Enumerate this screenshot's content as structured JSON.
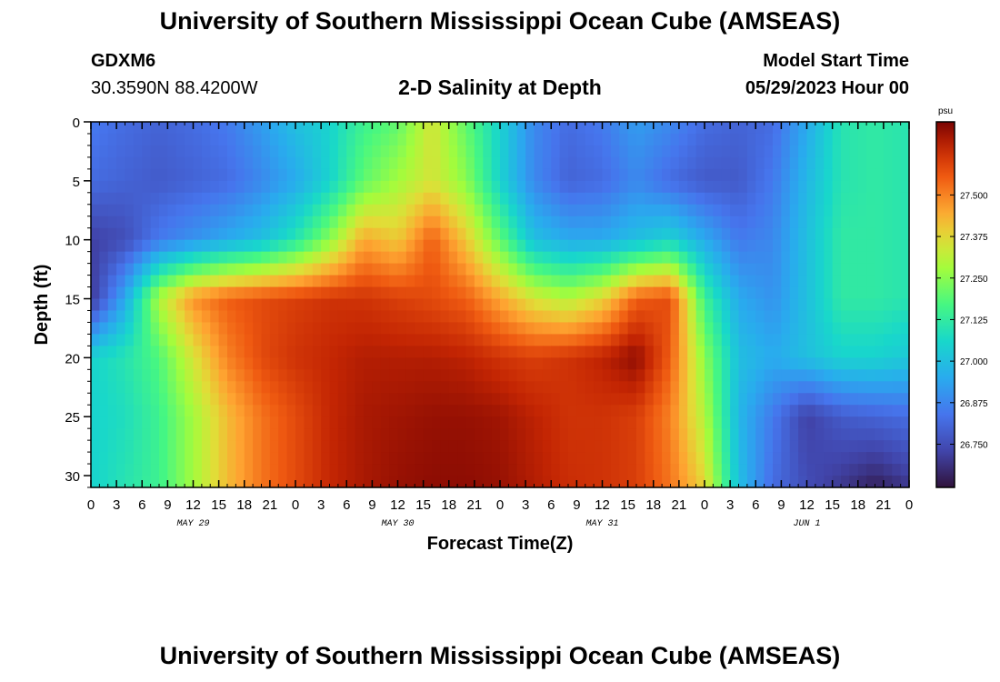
{
  "header": {
    "title": "University of Southern Mississippi Ocean Cube (AMSEAS)",
    "station_id": "GDXM6",
    "coords": "30.3590N  88.4200W",
    "chart_title": "2-D Salinity at Depth",
    "model_start_label": "Model Start Time",
    "model_start_value": "05/29/2023 Hour 00"
  },
  "footer": {
    "title": "University of Southern Mississippi Ocean Cube (AMSEAS)"
  },
  "chart_data": {
    "type": "heatmap",
    "title": "2-D Salinity at Depth",
    "xlabel": "Forecast Time(Z)",
    "ylabel": "Depth (ft)",
    "x_range_hours": [
      0,
      96
    ],
    "x_tick_labels": [
      "0",
      "3",
      "6",
      "9",
      "12",
      "15",
      "18",
      "21",
      "0",
      "3",
      "6",
      "9",
      "12",
      "15",
      "18",
      "21",
      "0",
      "3",
      "6",
      "9",
      "12",
      "15",
      "18",
      "21",
      "0",
      "3",
      "6",
      "9",
      "12",
      "15",
      "18",
      "21",
      "0"
    ],
    "date_labels": [
      {
        "label": "MAY 29",
        "hour": 12
      },
      {
        "label": "MAY 30",
        "hour": 36
      },
      {
        "label": "MAY 31",
        "hour": 60
      },
      {
        "label": "JUN 1",
        "hour": 84
      }
    ],
    "ylim": [
      0,
      31
    ],
    "y_ticks": [
      0,
      5,
      10,
      15,
      20,
      25,
      30
    ],
    "colorbar": {
      "units": "psu",
      "vmin": 26.62,
      "vmax": 27.72,
      "ticks": [
        27.5,
        27.375,
        27.25,
        27.125,
        27.0,
        26.875,
        26.75
      ],
      "tick_labels": [
        "27.500",
        "27.375",
        "27.250",
        "27.125",
        "27.000",
        "26.875",
        "26.750"
      ]
    },
    "field": {
      "hours": [
        0,
        4,
        8,
        12,
        16,
        20,
        24,
        28,
        32,
        36,
        40,
        44,
        48,
        52,
        56,
        60,
        64,
        68,
        72,
        76,
        80,
        84,
        88,
        92,
        96
      ],
      "depths": [
        0,
        5,
        10,
        15,
        20,
        25,
        31
      ],
      "values": [
        [
          26.85,
          26.82,
          26.8,
          26.82,
          26.85,
          26.92,
          27.0,
          27.05,
          27.15,
          27.2,
          27.35,
          27.2,
          27.05,
          26.88,
          26.82,
          26.85,
          26.92,
          26.88,
          26.82,
          26.8,
          26.82,
          26.95,
          27.1,
          27.12,
          27.1
        ],
        [
          26.82,
          26.8,
          26.78,
          26.8,
          26.82,
          26.88,
          26.95,
          27.05,
          27.2,
          27.28,
          27.35,
          27.25,
          27.05,
          26.88,
          26.8,
          26.82,
          26.88,
          26.82,
          26.78,
          26.78,
          26.85,
          26.98,
          27.1,
          27.12,
          27.1
        ],
        [
          26.72,
          26.75,
          26.85,
          26.9,
          26.95,
          27.0,
          27.1,
          27.25,
          27.45,
          27.4,
          27.55,
          27.4,
          27.2,
          27.0,
          26.95,
          26.95,
          27.0,
          27.05,
          26.95,
          26.85,
          26.88,
          27.0,
          27.12,
          27.12,
          27.1
        ],
        [
          26.7,
          26.95,
          27.3,
          27.48,
          27.55,
          27.58,
          27.6,
          27.62,
          27.62,
          27.6,
          27.58,
          27.55,
          27.45,
          27.35,
          27.3,
          27.38,
          27.55,
          27.58,
          27.15,
          26.95,
          26.9,
          27.0,
          27.12,
          27.12,
          27.1
        ],
        [
          27.05,
          27.1,
          27.18,
          27.35,
          27.5,
          27.58,
          27.62,
          27.64,
          27.66,
          27.66,
          27.66,
          27.65,
          27.62,
          27.6,
          27.62,
          27.65,
          27.7,
          27.55,
          27.25,
          27.0,
          26.95,
          27.0,
          27.05,
          27.05,
          27.02
        ],
        [
          27.05,
          27.08,
          27.15,
          27.28,
          27.42,
          27.52,
          27.58,
          27.64,
          27.67,
          27.68,
          27.69,
          27.69,
          27.68,
          27.65,
          27.62,
          27.62,
          27.6,
          27.5,
          27.3,
          26.98,
          26.85,
          26.72,
          26.78,
          26.8,
          26.82
        ],
        [
          27.05,
          27.1,
          27.15,
          27.28,
          27.42,
          27.52,
          27.58,
          27.64,
          27.67,
          27.69,
          27.7,
          27.7,
          27.69,
          27.66,
          27.63,
          27.62,
          27.6,
          27.52,
          27.38,
          27.0,
          26.82,
          26.75,
          26.7,
          26.65,
          26.7
        ]
      ]
    }
  }
}
